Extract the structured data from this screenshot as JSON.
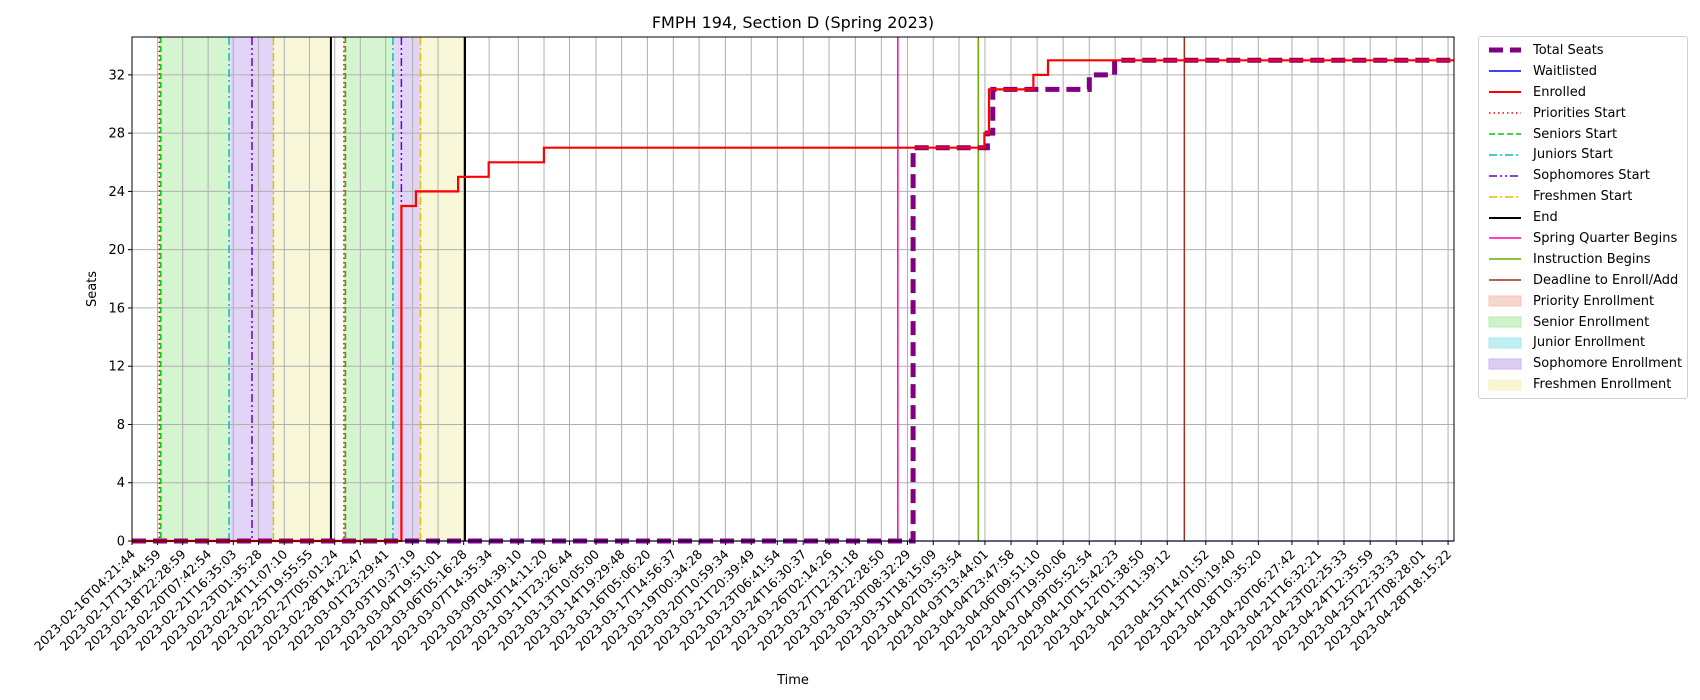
{
  "chart_data": {
    "type": "line",
    "title": "FMPH 194, Section D (Spring 2023)",
    "xlabel": "Time",
    "ylabel": "Seats",
    "ylim": [
      0,
      34.6
    ],
    "yticks": [
      0,
      4,
      8,
      12,
      16,
      20,
      24,
      28,
      32
    ],
    "grid": true,
    "legend_position": "outside-right",
    "x_range": [
      "2023-02-16T04:21:44",
      "2023-04-29T02:00:00"
    ],
    "xtick_labels": [
      "2023-02-16T04:21:44",
      "2023-02-17T13:44:59",
      "2023-02-18T22:28:59",
      "2023-02-20T07:42:54",
      "2023-02-21T16:35:03",
      "2023-02-23T01:35:28",
      "2023-02-24T11:07:10",
      "2023-02-25T19:55:55",
      "2023-02-27T05:01:24",
      "2023-02-28T14:22:47",
      "2023-03-01T23:29:41",
      "2023-03-03T10:37:19",
      "2023-03-04T19:51:01",
      "2023-03-06T05:16:28",
      "2023-03-07T14:35:34",
      "2023-03-09T04:39:10",
      "2023-03-10T14:11:20",
      "2023-03-11T23:26:44",
      "2023-03-13T10:05:00",
      "2023-03-14T19:29:48",
      "2023-03-16T05:06:20",
      "2023-03-17T14:56:37",
      "2023-03-19T00:34:28",
      "2023-03-20T10:59:34",
      "2023-03-21T20:39:49",
      "2023-03-23T06:41:54",
      "2023-03-24T16:30:37",
      "2023-03-26T02:14:26",
      "2023-03-27T12:31:18",
      "2023-03-28T22:28:50",
      "2023-03-30T08:32:29",
      "2023-03-31T18:15:09",
      "2023-04-02T03:53:54",
      "2023-04-03T13:44:01",
      "2023-04-04T23:47:58",
      "2023-04-06T09:51:10",
      "2023-04-07T19:50:06",
      "2023-04-09T05:52:54",
      "2023-04-10T15:42:23",
      "2023-04-12T01:38:50",
      "2023-04-13T11:39:12",
      "2023-04-15T14:01:52",
      "2023-04-17T00:19:40",
      "2023-04-18T10:35:20",
      "2023-04-20T06:27:42",
      "2023-04-21T16:32:21",
      "2023-04-23T02:25:33",
      "2023-04-24T12:35:59",
      "2023-04-25T22:33:33",
      "2023-04-27T08:28:01",
      "2023-04-28T18:15:22"
    ],
    "series": [
      {
        "name": "Total Seats",
        "color": "#800080",
        "style": "dashed-thick",
        "x": [
          "2023-02-16T04:21:44",
          "2023-03-30T16:00:00",
          "2023-03-30T16:00:00",
          "2023-04-03T17:00:00",
          "2023-04-03T17:00:00",
          "2023-04-04T00:00:00",
          "2023-04-04T00:00:00",
          "2023-04-09T06:00:00",
          "2023-04-09T06:00:00",
          "2023-04-10T15:00:00",
          "2023-04-10T15:00:00",
          "2023-04-29T02:00:00"
        ],
        "y": [
          0,
          0,
          27,
          27,
          28,
          28,
          31,
          31,
          32,
          32,
          33,
          33
        ]
      },
      {
        "name": "Waitlisted",
        "color": "#0000ff",
        "style": "solid",
        "x": [
          "2023-02-16T04:21:44",
          "2023-04-29T02:00:00"
        ],
        "y": [
          0,
          0
        ]
      },
      {
        "name": "Enrolled",
        "color": "#ff0000",
        "style": "solid",
        "x": [
          "2023-02-16T04:21:44",
          "2023-03-02T20:00:00",
          "2023-03-02T20:00:00",
          "2023-03-03T04:00:00",
          "2023-03-03T04:00:00",
          "2023-03-03T15:00:00",
          "2023-03-03T15:00:00",
          "2023-03-05T22:00:00",
          "2023-03-05T22:00:00",
          "2023-03-07T14:00:00",
          "2023-03-07T14:00:00",
          "2023-03-10T14:00:00",
          "2023-03-10T14:00:00",
          "2023-04-03T13:00:00",
          "2023-04-03T13:00:00",
          "2023-04-03T19:00:00",
          "2023-04-03T19:00:00",
          "2023-04-06T05:00:00",
          "2023-04-06T05:00:00",
          "2023-04-07T00:00:00",
          "2023-04-07T00:00:00",
          "2023-04-29T02:00:00"
        ],
        "y": [
          0,
          0,
          23,
          23,
          23,
          23,
          24,
          24,
          25,
          25,
          26,
          26,
          27,
          27,
          28,
          28,
          31,
          31,
          32,
          32,
          33,
          33
        ]
      },
      {
        "name": "Priorities Start",
        "color": "#ff0000",
        "style": "dotted",
        "x": [
          "2023-02-17T16:00:00",
          "2023-02-27T17:00:00"
        ]
      },
      {
        "name": "Seniors Start",
        "color": "#00cc00",
        "style": "dashed",
        "x": [
          "2023-02-17T18:00:00",
          "2023-02-27T19:00:00"
        ]
      },
      {
        "name": "Juniors Start",
        "color": "#00bfbf",
        "style": "dashdot",
        "x": [
          "2023-02-21T11:00:00",
          "2023-03-02T09:00:00"
        ]
      },
      {
        "name": "Sophomores Start",
        "color": "#6a00d0",
        "style": "dashdotdot",
        "x": [
          "2023-02-22T17:00:00",
          "2023-03-02T20:00:00"
        ]
      },
      {
        "name": "Freshmen Start",
        "color": "#e0c000",
        "style": "dashdot",
        "x": [
          "2023-02-23T21:00:00",
          "2023-03-03T21:00:00"
        ]
      },
      {
        "name": "End",
        "color": "#000000",
        "style": "solid",
        "x": [
          "2023-02-27T00:00:00",
          "2023-03-06T07:00:00"
        ]
      },
      {
        "name": "Spring Quarter Begins",
        "color": "#ff00aa",
        "style": "solid",
        "x": [
          "2023-03-29T20:00:00"
        ]
      },
      {
        "name": "Instruction Begins",
        "color": "#6aaa00",
        "style": "solid",
        "x": [
          "2023-04-03T05:00:00"
        ]
      },
      {
        "name": "Deadline to Enroll/Add",
        "color": "#a0301a",
        "style": "solid",
        "x": [
          "2023-04-14T10:00:00"
        ]
      }
    ],
    "bands": [
      {
        "name": "Priority Enrollment",
        "color": "#f4c6b8",
        "ranges": [
          [
            "2023-02-17T16:00:00",
            "2023-02-17T18:00:00"
          ],
          [
            "2023-02-27T17:00:00",
            "2023-02-27T19:00:00"
          ]
        ]
      },
      {
        "name": "Senior Enrollment",
        "color": "#b8eeb0",
        "ranges": [
          [
            "2023-02-17T18:00:00",
            "2023-02-21T11:00:00"
          ],
          [
            "2023-02-27T19:00:00",
            "2023-03-02T09:00:00"
          ]
        ]
      },
      {
        "name": "Junior Enrollment",
        "color": "#a8e8f0",
        "ranges": [
          [
            "2023-02-21T11:00:00",
            "2023-02-21T12:30:00"
          ],
          [
            "2023-03-02T09:00:00",
            "2023-03-02T10:30:00"
          ]
        ]
      },
      {
        "name": "Sophomore Enrollment",
        "color": "#cdb8f0",
        "ranges": [
          [
            "2023-02-21T12:30:00",
            "2023-02-23T21:00:00"
          ],
          [
            "2023-03-02T10:30:00",
            "2023-03-03T21:00:00"
          ]
        ]
      },
      {
        "name": "Freshmen Enrollment",
        "color": "#f4f4c0",
        "ranges": [
          [
            "2023-02-23T21:00:00",
            "2023-02-27T00:00:00"
          ],
          [
            "2023-03-03T21:00:00",
            "2023-03-06T07:00:00"
          ]
        ]
      }
    ]
  }
}
